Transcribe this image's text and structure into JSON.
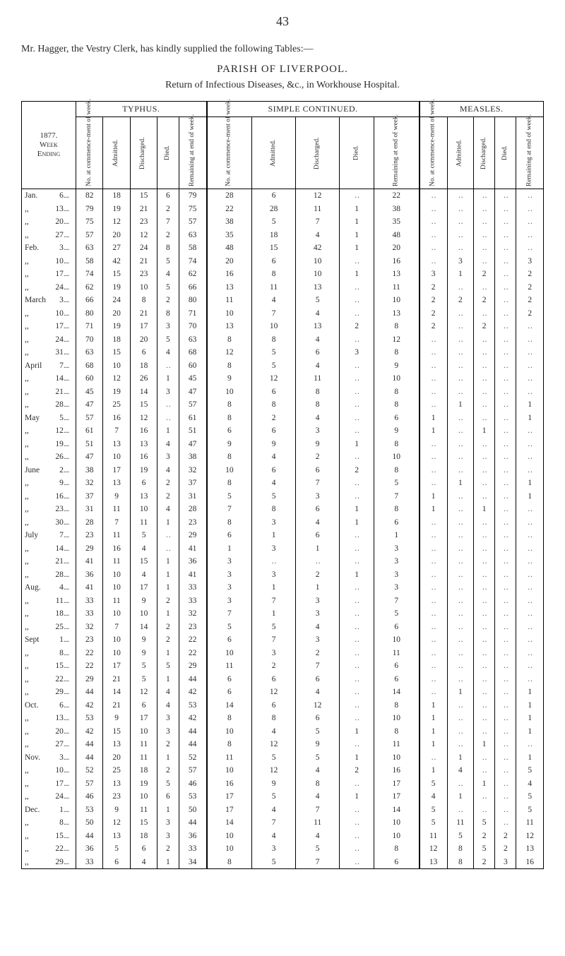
{
  "page_number": "43",
  "intro": "Mr. Hagger, the Vestry Clerk, has kindly supplied the following Tables:—",
  "title": "PARISH OF LIVERPOOL.",
  "subtitle": "Return of Infectious Diseases, &c., in Workhouse Hospital.",
  "year_header": "1877.\nWeek\nEnding",
  "groups": [
    "TYPHUS.",
    "SIMPLE CONTINUED.",
    "MEASLES."
  ],
  "cols": [
    "No. at commence-ment of week.",
    "Admitted.",
    "Discharged.",
    "Died.",
    "Remaining at end of week."
  ],
  "rows": [
    {
      "m": "Jan.",
      "d": "6",
      "dots": "....",
      "t": [
        82,
        18,
        15,
        6,
        79
      ],
      "s": [
        28,
        6,
        12,
        "..",
        22
      ],
      "me": [
        "..",
        "..",
        "..",
        "..",
        ".."
      ]
    },
    {
      "m": ",,",
      "d": "13",
      "dots": "....",
      "t": [
        79,
        19,
        21,
        2,
        75
      ],
      "s": [
        22,
        28,
        11,
        1,
        38
      ],
      "me": [
        "..",
        "..",
        "..",
        "..",
        ".."
      ]
    },
    {
      "m": ",,",
      "d": "20",
      "dots": "....",
      "t": [
        75,
        12,
        23,
        7,
        57
      ],
      "s": [
        38,
        5,
        7,
        1,
        35
      ],
      "me": [
        "..",
        "..",
        "..",
        "..",
        ".."
      ]
    },
    {
      "m": ",,",
      "d": "27",
      "dots": "....",
      "t": [
        57,
        20,
        12,
        2,
        63
      ],
      "s": [
        35,
        18,
        4,
        1,
        48
      ],
      "me": [
        "..",
        "..",
        "..",
        "..",
        ".."
      ]
    },
    {
      "m": "Feb.",
      "d": "3",
      "dots": "....",
      "t": [
        63,
        27,
        24,
        8,
        58
      ],
      "s": [
        48,
        15,
        42,
        1,
        20
      ],
      "me": [
        "..",
        "..",
        "..",
        "..",
        ".."
      ]
    },
    {
      "m": ",,",
      "d": "10",
      "dots": "....",
      "t": [
        58,
        42,
        21,
        5,
        74
      ],
      "s": [
        20,
        6,
        10,
        "..",
        16
      ],
      "me": [
        "..",
        3,
        "..",
        "..",
        3
      ]
    },
    {
      "m": ",,",
      "d": "17",
      "dots": "....",
      "t": [
        74,
        15,
        23,
        4,
        62
      ],
      "s": [
        16,
        8,
        10,
        1,
        13
      ],
      "me": [
        3,
        1,
        2,
        "..",
        2
      ]
    },
    {
      "m": ",,",
      "d": "24",
      "dots": "....",
      "t": [
        62,
        19,
        10,
        5,
        66
      ],
      "s": [
        13,
        11,
        13,
        "..",
        11
      ],
      "me": [
        2,
        "..",
        "..",
        "..",
        2
      ]
    },
    {
      "m": "March",
      "d": "3",
      "dots": "....",
      "t": [
        66,
        24,
        8,
        2,
        80
      ],
      "s": [
        11,
        4,
        5,
        "..",
        10
      ],
      "me": [
        2,
        2,
        2,
        "..",
        2
      ]
    },
    {
      "m": ",,",
      "d": "10",
      "dots": "....",
      "t": [
        80,
        20,
        21,
        8,
        71
      ],
      "s": [
        10,
        7,
        4,
        "..",
        13
      ],
      "me": [
        2,
        "..",
        "..",
        "..",
        2
      ]
    },
    {
      "m": ",,",
      "d": "17",
      "dots": "....",
      "t": [
        71,
        19,
        17,
        3,
        70
      ],
      "s": [
        13,
        10,
        13,
        2,
        8
      ],
      "me": [
        2,
        "..",
        2,
        "..",
        ".."
      ]
    },
    {
      "m": ",,",
      "d": "24",
      "dots": "....",
      "t": [
        70,
        18,
        20,
        5,
        63
      ],
      "s": [
        8,
        8,
        4,
        "..",
        12
      ],
      "me": [
        "..",
        "..",
        "..",
        "..",
        ".."
      ]
    },
    {
      "m": ",,",
      "d": "31",
      "dots": "....",
      "t": [
        63,
        15,
        6,
        4,
        68
      ],
      "s": [
        12,
        5,
        6,
        3,
        8
      ],
      "me": [
        "..",
        "..",
        "..",
        "..",
        ".."
      ]
    },
    {
      "m": "April",
      "d": "7",
      "dots": "....",
      "t": [
        68,
        10,
        18,
        "..",
        60
      ],
      "s": [
        8,
        5,
        4,
        "..",
        9
      ],
      "me": [
        "..",
        "..",
        "..",
        "..",
        ".."
      ]
    },
    {
      "m": ",,",
      "d": "14",
      "dots": "....",
      "t": [
        60,
        12,
        26,
        1,
        45
      ],
      "s": [
        9,
        12,
        11,
        "..",
        10
      ],
      "me": [
        "..",
        "..",
        "..",
        "..",
        ".."
      ]
    },
    {
      "m": ",,",
      "d": "21",
      "dots": "....",
      "t": [
        45,
        19,
        14,
        3,
        47
      ],
      "s": [
        10,
        6,
        8,
        "..",
        8
      ],
      "me": [
        "..",
        "..",
        "..",
        "..",
        ".."
      ]
    },
    {
      "m": ",,",
      "d": "28",
      "dots": "....",
      "t": [
        47,
        25,
        15,
        "..",
        57
      ],
      "s": [
        8,
        8,
        8,
        "..",
        8
      ],
      "me": [
        "..",
        1,
        "..",
        "..",
        1
      ]
    },
    {
      "m": "May",
      "d": "5",
      "dots": "....",
      "t": [
        57,
        16,
        12,
        "..",
        61
      ],
      "s": [
        8,
        2,
        4,
        "..",
        6
      ],
      "me": [
        1,
        "..",
        "..",
        "..",
        1
      ]
    },
    {
      "m": ",,",
      "d": "12",
      "dots": "....",
      "t": [
        61,
        7,
        16,
        1,
        51
      ],
      "s": [
        6,
        6,
        3,
        "..",
        9
      ],
      "me": [
        1,
        "..",
        1,
        "..",
        ".."
      ]
    },
    {
      "m": ",,",
      "d": "19",
      "dots": "....",
      "t": [
        51,
        13,
        13,
        4,
        47
      ],
      "s": [
        9,
        9,
        9,
        1,
        8
      ],
      "me": [
        "..",
        "..",
        "..",
        "..",
        ".."
      ]
    },
    {
      "m": ",,",
      "d": "26",
      "dots": "....",
      "t": [
        47,
        10,
        16,
        3,
        38
      ],
      "s": [
        8,
        4,
        2,
        "..",
        10
      ],
      "me": [
        "..",
        "..",
        "..",
        "..",
        ".."
      ]
    },
    {
      "m": "June",
      "d": "2",
      "dots": "....",
      "t": [
        38,
        17,
        19,
        4,
        32
      ],
      "s": [
        10,
        6,
        6,
        2,
        8
      ],
      "me": [
        "..",
        "..",
        "..",
        "..",
        ".."
      ]
    },
    {
      "m": ",,",
      "d": "9",
      "dots": "....",
      "t": [
        32,
        13,
        6,
        2,
        37
      ],
      "s": [
        8,
        4,
        7,
        "..",
        5
      ],
      "me": [
        "..",
        1,
        "..",
        "..",
        1
      ]
    },
    {
      "m": ",,",
      "d": "16",
      "dots": "....",
      "t": [
        37,
        9,
        13,
        2,
        31
      ],
      "s": [
        5,
        5,
        3,
        "..",
        7
      ],
      "me": [
        1,
        "..",
        "..",
        "..",
        1
      ]
    },
    {
      "m": ",,",
      "d": "23",
      "dots": "....",
      "t": [
        31,
        11,
        10,
        4,
        28
      ],
      "s": [
        7,
        8,
        6,
        1,
        8
      ],
      "me": [
        1,
        "..",
        1,
        "..",
        ".."
      ]
    },
    {
      "m": ",,",
      "d": "30",
      "dots": "....",
      "t": [
        28,
        7,
        11,
        1,
        23
      ],
      "s": [
        8,
        3,
        4,
        1,
        6
      ],
      "me": [
        "..",
        "..",
        "..",
        "..",
        ".."
      ]
    },
    {
      "m": "July",
      "d": "7",
      "dots": "....",
      "t": [
        23,
        11,
        5,
        "..",
        29
      ],
      "s": [
        6,
        1,
        6,
        "..",
        1
      ],
      "me": [
        "..",
        "..",
        "..",
        "..",
        ".."
      ]
    },
    {
      "m": ",,",
      "d": "14",
      "dots": "....",
      "t": [
        29,
        16,
        4,
        "..",
        41
      ],
      "s": [
        1,
        3,
        1,
        "..",
        3
      ],
      "me": [
        "..",
        "..",
        "..",
        "..",
        ".."
      ]
    },
    {
      "m": ",,",
      "d": "21",
      "dots": "....",
      "t": [
        41,
        11,
        15,
        1,
        36
      ],
      "s": [
        3,
        "..",
        "..",
        "..",
        3
      ],
      "me": [
        "..",
        "..",
        "..",
        "..",
        ".."
      ]
    },
    {
      "m": ",,",
      "d": "28",
      "dots": "....",
      "t": [
        36,
        10,
        4,
        1,
        41
      ],
      "s": [
        3,
        3,
        2,
        1,
        3
      ],
      "me": [
        "..",
        "..",
        "..",
        "..",
        ".."
      ]
    },
    {
      "m": "Aug.",
      "d": "4",
      "dots": "....",
      "t": [
        41,
        10,
        17,
        1,
        33
      ],
      "s": [
        3,
        1,
        1,
        "..",
        3
      ],
      "me": [
        "..",
        "..",
        "..",
        "..",
        ".."
      ]
    },
    {
      "m": ",,",
      "d": "11",
      "dots": "....",
      "t": [
        33,
        11,
        9,
        2,
        33
      ],
      "s": [
        3,
        7,
        3,
        "..",
        7
      ],
      "me": [
        "..",
        "..",
        "..",
        "..",
        ".."
      ]
    },
    {
      "m": ",,",
      "d": "18",
      "dots": "....",
      "t": [
        33,
        10,
        10,
        1,
        32
      ],
      "s": [
        7,
        1,
        3,
        "..",
        5
      ],
      "me": [
        "..",
        "..",
        "..",
        "..",
        ".."
      ]
    },
    {
      "m": ",,",
      "d": "25",
      "dots": "....",
      "t": [
        32,
        7,
        14,
        2,
        23
      ],
      "s": [
        5,
        5,
        4,
        "..",
        6
      ],
      "me": [
        "..",
        "..",
        "..",
        "..",
        ".."
      ]
    },
    {
      "m": "Sept",
      "d": "1",
      "dots": "....",
      "t": [
        23,
        10,
        9,
        2,
        22
      ],
      "s": [
        6,
        7,
        3,
        "..",
        10
      ],
      "me": [
        "..",
        "..",
        "..",
        "..",
        ".."
      ]
    },
    {
      "m": ",,",
      "d": "8",
      "dots": "....",
      "t": [
        22,
        10,
        9,
        1,
        22
      ],
      "s": [
        10,
        3,
        2,
        "..",
        11
      ],
      "me": [
        "..",
        "..",
        "..",
        "..",
        ".."
      ]
    },
    {
      "m": ",,",
      "d": "15",
      "dots": "....",
      "t": [
        22,
        17,
        5,
        5,
        29
      ],
      "s": [
        11,
        2,
        7,
        "..",
        6
      ],
      "me": [
        "..",
        "..",
        "..",
        "..",
        ".."
      ]
    },
    {
      "m": ",,",
      "d": "22",
      "dots": "....",
      "t": [
        29,
        21,
        5,
        1,
        44
      ],
      "s": [
        6,
        6,
        6,
        "..",
        6
      ],
      "me": [
        "..",
        "..",
        "..",
        "..",
        ".."
      ]
    },
    {
      "m": ",,",
      "d": "29",
      "dots": "....",
      "t": [
        44,
        14,
        12,
        4,
        42
      ],
      "s": [
        6,
        12,
        4,
        "..",
        14
      ],
      "me": [
        "..",
        1,
        "..",
        "..",
        1
      ]
    },
    {
      "m": "Oct.",
      "d": "6",
      "dots": "....",
      "t": [
        42,
        21,
        6,
        4,
        53
      ],
      "s": [
        14,
        6,
        12,
        "..",
        8
      ],
      "me": [
        1,
        "..",
        "..",
        "..",
        1
      ]
    },
    {
      "m": ",,",
      "d": "13",
      "dots": "....",
      "t": [
        53,
        9,
        17,
        3,
        42
      ],
      "s": [
        8,
        8,
        6,
        "..",
        10
      ],
      "me": [
        1,
        "..",
        "..",
        "..",
        1
      ]
    },
    {
      "m": ",,",
      "d": "20",
      "dots": "....",
      "t": [
        42,
        15,
        10,
        3,
        44
      ],
      "s": [
        10,
        4,
        5,
        1,
        8
      ],
      "me": [
        1,
        "..",
        "..",
        "..",
        1
      ]
    },
    {
      "m": ",,",
      "d": "27",
      "dots": "....",
      "t": [
        44,
        13,
        11,
        2,
        44
      ],
      "s": [
        8,
        12,
        9,
        "..",
        11
      ],
      "me": [
        1,
        "..",
        1,
        "..",
        ".."
      ]
    },
    {
      "m": "Nov.",
      "d": "3",
      "dots": "....",
      "t": [
        44,
        20,
        11,
        1,
        52
      ],
      "s": [
        11,
        5,
        5,
        1,
        10
      ],
      "me": [
        "..",
        1,
        "..",
        "..",
        1
      ]
    },
    {
      "m": ",,",
      "d": "10",
      "dots": "....",
      "t": [
        52,
        25,
        18,
        2,
        57
      ],
      "s": [
        10,
        12,
        4,
        2,
        16
      ],
      "me": [
        1,
        4,
        "..",
        "..",
        5
      ]
    },
    {
      "m": ",,",
      "d": "17",
      "dots": "....",
      "t": [
        57,
        13,
        19,
        5,
        46
      ],
      "s": [
        16,
        9,
        8,
        "..",
        17
      ],
      "me": [
        5,
        "..",
        1,
        "..",
        4
      ]
    },
    {
      "m": ",,",
      "d": "24",
      "dots": "....",
      "t": [
        46,
        23,
        10,
        6,
        53
      ],
      "s": [
        17,
        5,
        4,
        1,
        17
      ],
      "me": [
        4,
        1,
        "..",
        "..",
        5
      ]
    },
    {
      "m": "Dec.",
      "d": "1",
      "dots": "....",
      "t": [
        53,
        9,
        11,
        1,
        50
      ],
      "s": [
        17,
        4,
        7,
        "..",
        14
      ],
      "me": [
        5,
        "..",
        "..",
        "..",
        5
      ]
    },
    {
      "m": ",,",
      "d": "8",
      "dots": "....",
      "t": [
        50,
        12,
        15,
        3,
        44
      ],
      "s": [
        14,
        7,
        11,
        "..",
        10
      ],
      "me": [
        5,
        11,
        5,
        "..",
        11
      ]
    },
    {
      "m": ",,",
      "d": "15",
      "dots": "....",
      "t": [
        44,
        13,
        18,
        3,
        36
      ],
      "s": [
        10,
        4,
        4,
        "..",
        10
      ],
      "me": [
        11,
        5,
        2,
        2,
        12
      ]
    },
    {
      "m": ",,",
      "d": "22",
      "dots": "....",
      "t": [
        36,
        5,
        6,
        2,
        33
      ],
      "s": [
        10,
        3,
        5,
        "..",
        8
      ],
      "me": [
        12,
        8,
        5,
        2,
        13
      ]
    },
    {
      "m": ",,",
      "d": "29",
      "dots": "....",
      "t": [
        33,
        6,
        4,
        1,
        34
      ],
      "s": [
        8,
        5,
        7,
        "..",
        6
      ],
      "me": [
        13,
        8,
        2,
        3,
        16
      ]
    }
  ]
}
